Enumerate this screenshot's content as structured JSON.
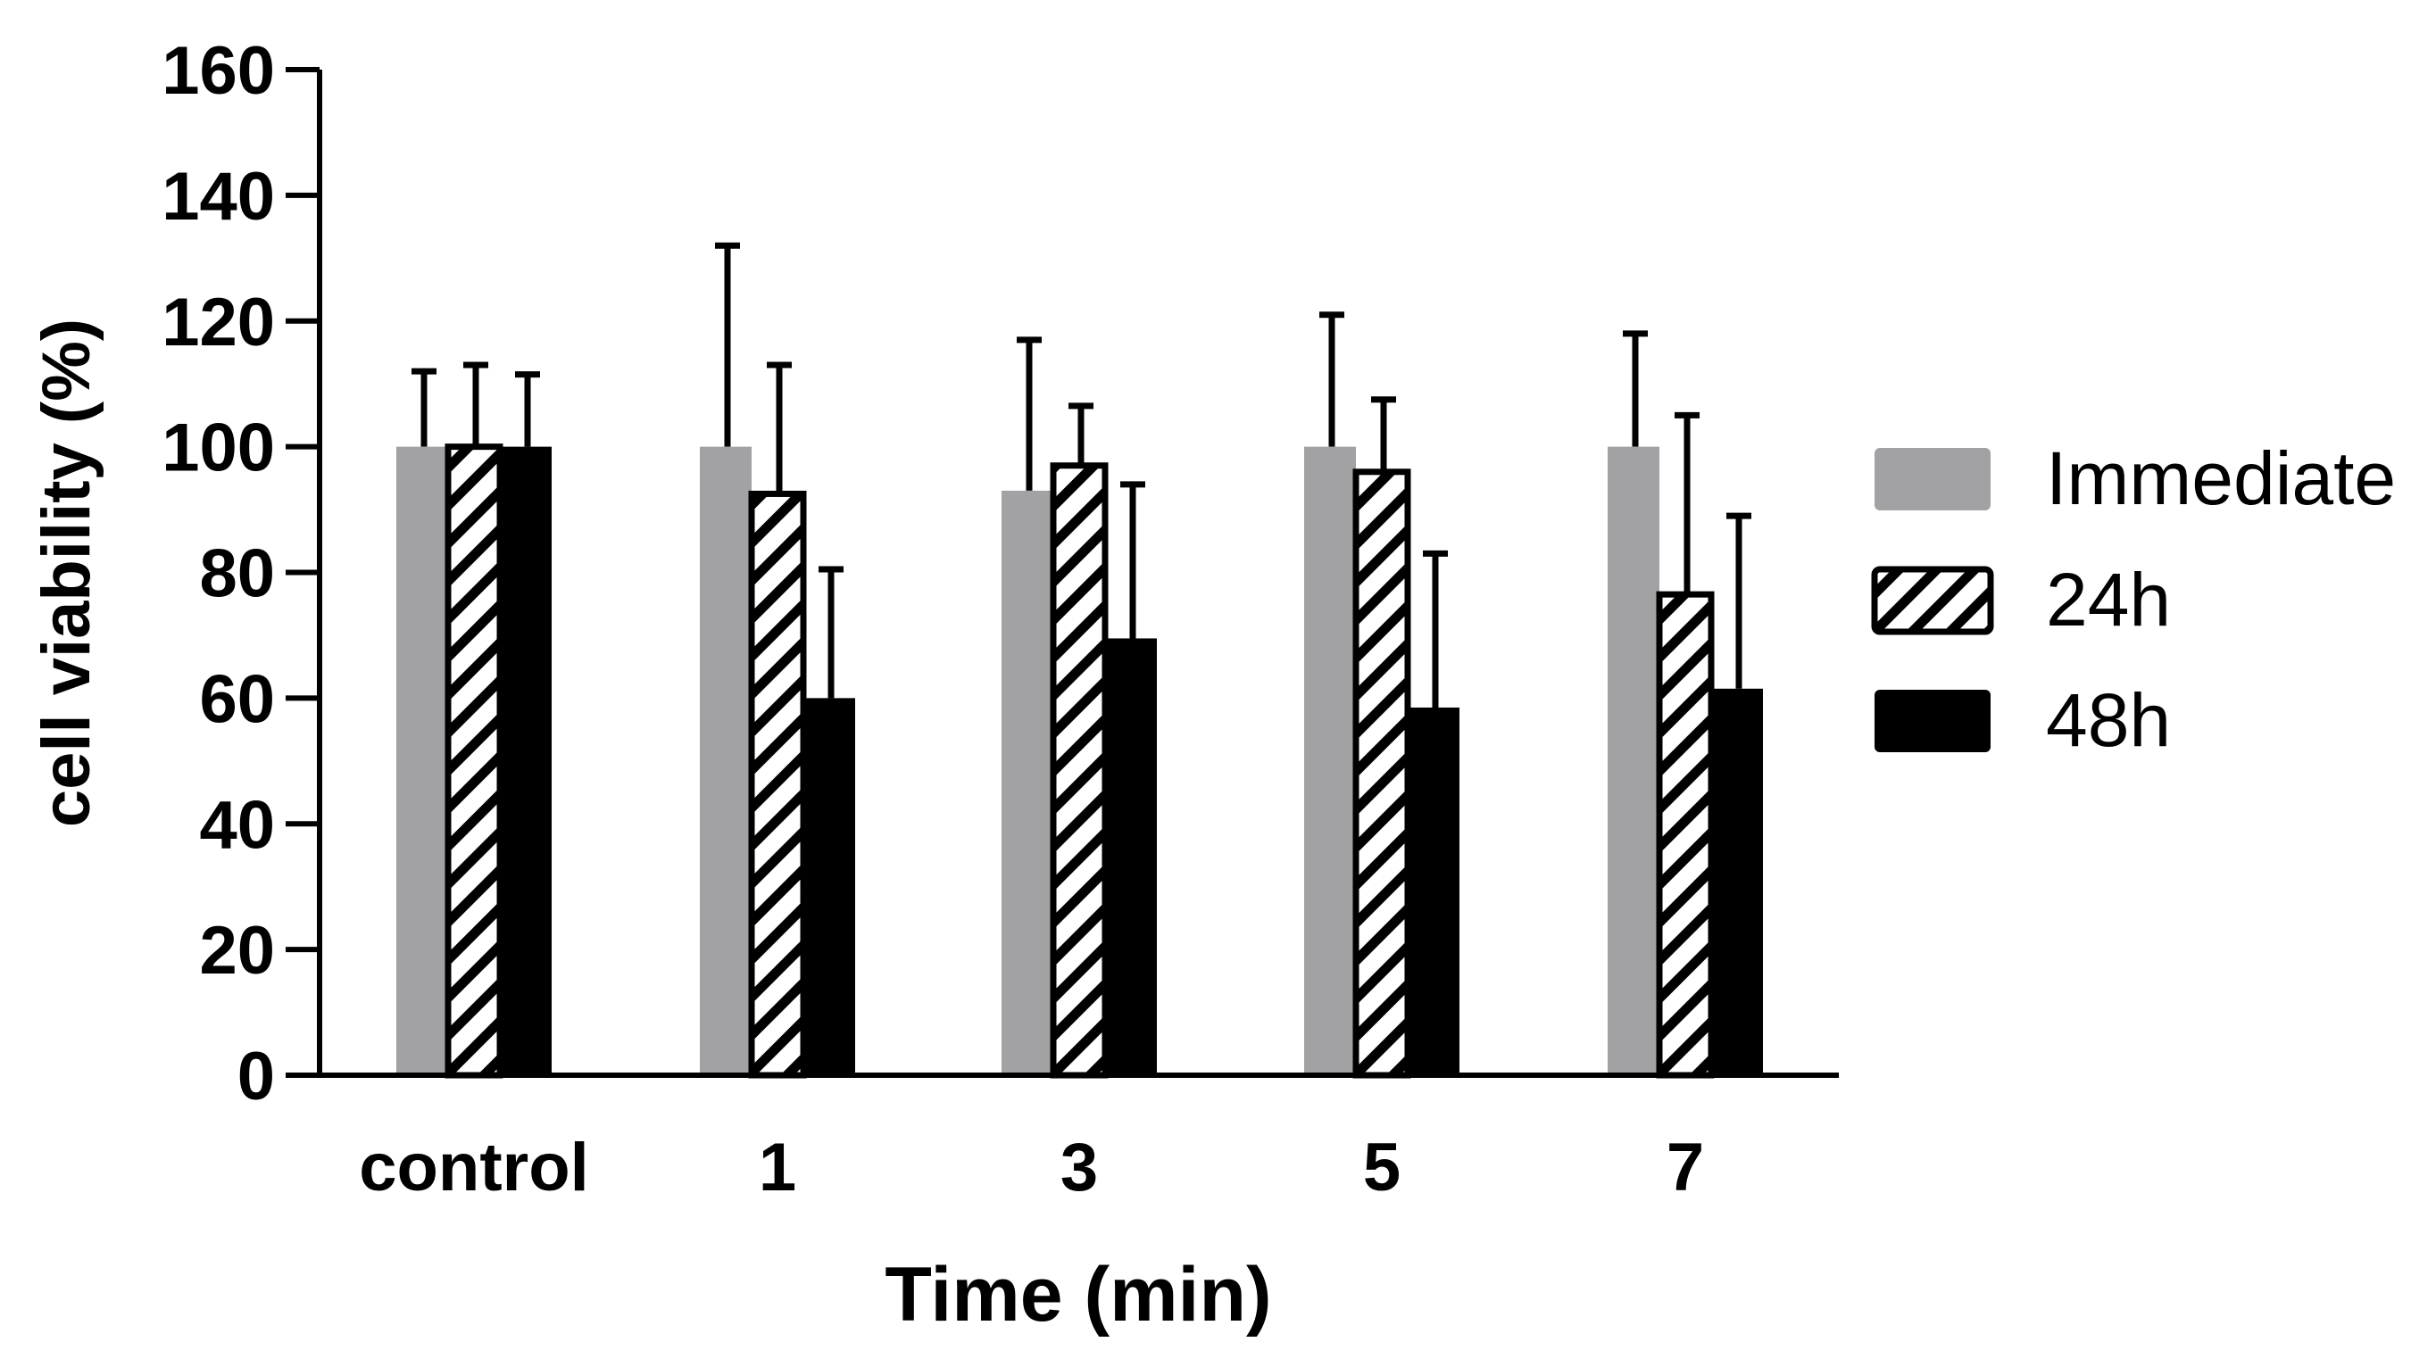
{
  "chart_data": {
    "type": "bar",
    "title": "",
    "xlabel": "Time (min)",
    "ylabel": "cell viability (%)",
    "categories": [
      "control",
      "1",
      "3",
      "5",
      "7"
    ],
    "ylim": [
      0,
      160
    ],
    "yticks": [
      0,
      20,
      40,
      60,
      80,
      100,
      120,
      140,
      160
    ],
    "ytick_labels": [
      "0",
      "20",
      "40",
      "60",
      "80",
      "100",
      "120",
      "140",
      "160"
    ],
    "series": [
      {
        "name": "Immediate",
        "fill": "solid",
        "color": "#a2a2a5",
        "values": [
          100,
          100,
          93,
          100,
          100
        ],
        "error": [
          12,
          32,
          24,
          21,
          18
        ]
      },
      {
        "name": "24h",
        "fill": "hatch",
        "color": "#000000",
        "values": [
          100,
          92.5,
          97,
          96,
          76.5
        ],
        "error": [
          13,
          20.5,
          9.5,
          11.5,
          28.5
        ]
      },
      {
        "name": "48h",
        "fill": "solid",
        "color": "#000000",
        "values": [
          100,
          60,
          69.5,
          58.5,
          61.5
        ],
        "error": [
          11.5,
          20.5,
          24.5,
          24.5,
          27.5
        ]
      }
    ],
    "legend_position": "right",
    "grid": false
  }
}
